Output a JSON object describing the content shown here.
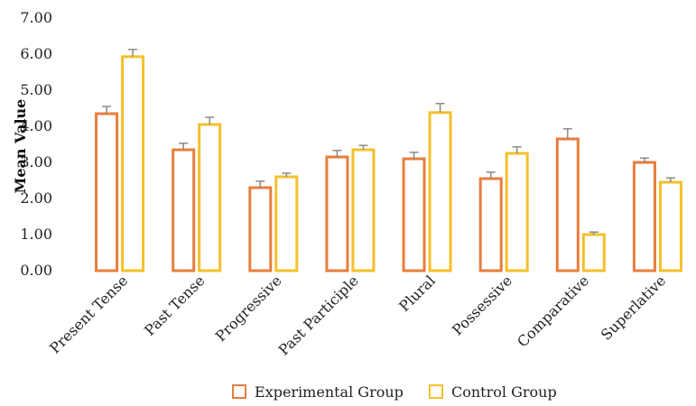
{
  "chart_data": {
    "type": "bar",
    "title": "",
    "xlabel": "",
    "ylabel": "Mean Value",
    "ylim": [
      0,
      7
    ],
    "yticks": [
      "0.00",
      "1.00",
      "2.00",
      "3.00",
      "4.00",
      "5.00",
      "6.00",
      "7.00"
    ],
    "grid": false,
    "legend_position": "bottom",
    "categories": [
      "Present Tense",
      "Past Tense",
      "Progressive",
      "Past Participle",
      "Plural",
      "Possessive",
      "Comparative",
      "Superlative"
    ],
    "series": [
      {
        "name": "Experimental Group",
        "color": "#E87D3E",
        "values": [
          4.35,
          3.35,
          2.3,
          3.15,
          3.1,
          2.55,
          3.65,
          3.0
        ],
        "error": [
          0.2,
          0.18,
          0.18,
          0.18,
          0.18,
          0.18,
          0.28,
          0.12
        ]
      },
      {
        "name": "Control Group",
        "color": "#F5C02A",
        "values": [
          5.93,
          4.05,
          2.6,
          3.35,
          4.38,
          3.25,
          1.0,
          2.45
        ],
        "error": [
          0.2,
          0.2,
          0.1,
          0.12,
          0.25,
          0.18,
          0.07,
          0.12
        ]
      }
    ],
    "errorbar_color": "#8a8a8a"
  }
}
